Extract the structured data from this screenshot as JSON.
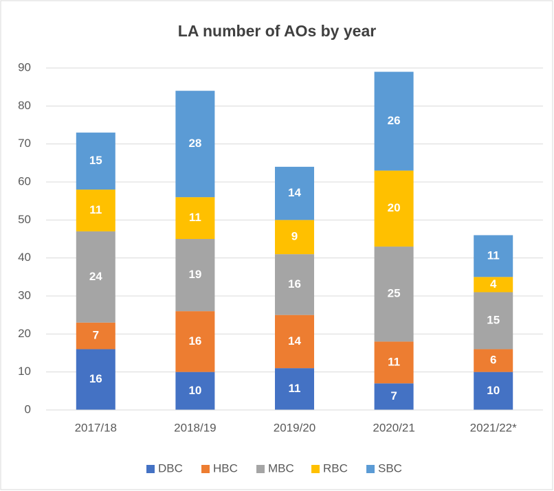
{
  "chart_data": {
    "type": "stacked_bar",
    "title": "LA number of AOs by year",
    "categories": [
      "2017/18",
      "2018/19",
      "2019/20",
      "2020/21",
      "2021/22*"
    ],
    "series": [
      {
        "name": "DBC",
        "color": "#4472c4",
        "values": [
          16,
          10,
          11,
          7,
          10
        ]
      },
      {
        "name": "HBC",
        "color": "#ed7d31",
        "values": [
          7,
          16,
          14,
          11,
          6
        ]
      },
      {
        "name": "MBC",
        "color": "#a5a5a5",
        "values": [
          24,
          19,
          16,
          25,
          15
        ]
      },
      {
        "name": "RBC",
        "color": "#ffc000",
        "values": [
          11,
          11,
          9,
          20,
          4
        ]
      },
      {
        "name": "SBC",
        "color": "#5b9bd5",
        "values": [
          15,
          28,
          14,
          26,
          11
        ]
      }
    ],
    "ylim": [
      0,
      90
    ],
    "yticks": [
      0,
      10,
      20,
      30,
      40,
      50,
      60,
      70,
      80,
      90
    ],
    "grid": true,
    "legend": "bottom"
  }
}
